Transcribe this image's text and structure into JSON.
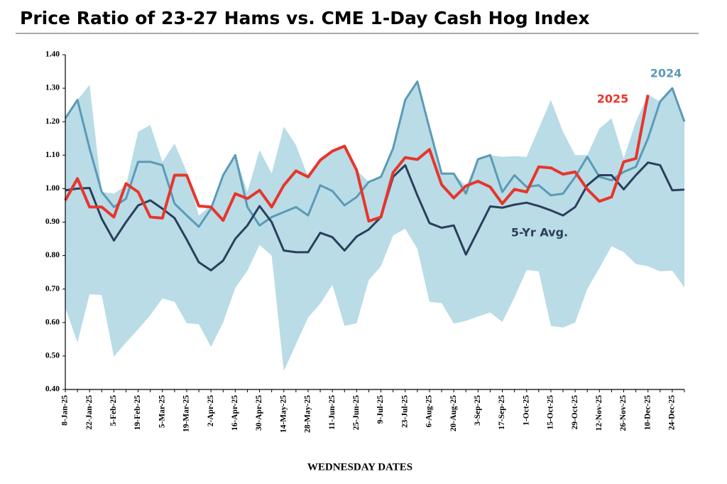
{
  "chart_data": {
    "type": "line",
    "title": "Price Ratio of 23-27 Hams vs. CME 1-Day Cash Hog Index",
    "x_label": "WEDNESDAY DATES",
    "categories": [
      "8-Jan-25",
      null,
      "22-Jan-25",
      null,
      "5-Feb-25",
      null,
      "19-Feb-25",
      null,
      "5-Mar-25",
      null,
      "19-Mar-25",
      null,
      "2-Apr-25",
      null,
      "16-Apr-25",
      null,
      "30-Apr-25",
      null,
      "14-May-25",
      null,
      "28-May-25",
      null,
      "11-Jun-25",
      null,
      "25-Jun-25",
      null,
      "9-Jul-25",
      null,
      "23-Jul-25",
      null,
      "6-Aug-25",
      null,
      "20-Aug-25",
      null,
      "3-Sep-25",
      null,
      "17-Sep-25",
      null,
      "1-Oct-25",
      null,
      "15-Oct-25",
      null,
      "29-Oct-25",
      null,
      "12-Nov-25",
      null,
      "26-Nov-25",
      null,
      "10-Dec-25",
      null,
      "24-Dec-25",
      null
    ],
    "ylim": [
      0.4,
      1.4
    ],
    "yticks": [
      {
        "value": 0.4,
        "label": "0.40"
      },
      {
        "value": 0.5,
        "label": "0.50"
      },
      {
        "value": 0.6,
        "label": "0.60"
      },
      {
        "value": 0.7,
        "label": "0.70"
      },
      {
        "value": 0.8,
        "label": "0.80"
      },
      {
        "value": 0.9,
        "label": "0.90"
      },
      {
        "value": 1.0,
        "label": "1.00"
      },
      {
        "value": 1.1,
        "label": "1.10"
      },
      {
        "value": 1.2,
        "label": "1.20"
      },
      {
        "value": 1.3,
        "label": "1.30"
      },
      {
        "value": 1.4,
        "label": "1.40"
      }
    ],
    "grid": false,
    "band": {
      "color": "#b9dce7",
      "high": [
        1.21,
        1.265,
        1.31,
        0.99,
        0.985,
        1.01,
        1.17,
        1.19,
        1.08,
        1.135,
        1.05,
        0.92,
        0.95,
        1.04,
        1.1,
        0.99,
        1.115,
        1.045,
        1.185,
        1.13,
        1.035,
        1.085,
        1.112,
        1.127,
        1.055,
        1.02,
        1.04,
        1.12,
        1.265,
        1.32,
        1.18,
        1.045,
        1.045,
        1.008,
        1.088,
        1.1,
        1.095,
        1.097,
        1.095,
        1.18,
        1.265,
        1.17,
        1.1,
        1.1,
        1.18,
        1.21,
        1.09,
        1.2,
        1.28,
        1.26,
        1.3,
        1.2
      ],
      "low": [
        0.645,
        0.54,
        0.685,
        0.682,
        0.498,
        0.54,
        0.58,
        0.622,
        0.672,
        0.662,
        0.598,
        0.595,
        0.527,
        0.6,
        0.703,
        0.755,
        0.832,
        0.8,
        0.455,
        0.535,
        0.615,
        0.656,
        0.713,
        0.59,
        0.598,
        0.727,
        0.768,
        0.86,
        0.88,
        0.82,
        0.662,
        0.658,
        0.597,
        0.605,
        0.618,
        0.63,
        0.602,
        0.675,
        0.757,
        0.753,
        0.59,
        0.585,
        0.6,
        0.7,
        0.763,
        0.828,
        0.81,
        0.775,
        0.768,
        0.753,
        0.755,
        0.705
      ]
    },
    "series": [
      {
        "name": "2024",
        "color": "#5b9ab6",
        "values": [
          1.21,
          1.265,
          1.12,
          0.99,
          0.945,
          0.97,
          1.08,
          1.08,
          1.07,
          0.955,
          0.92,
          0.886,
          0.94,
          1.04,
          1.1,
          0.945,
          0.89,
          0.915,
          0.93,
          0.945,
          0.92,
          1.01,
          0.993,
          0.95,
          0.975,
          1.02,
          1.035,
          1.12,
          1.265,
          1.32,
          1.18,
          1.045,
          1.045,
          0.985,
          1.088,
          1.1,
          0.99,
          1.04,
          1.005,
          1.01,
          0.98,
          0.985,
          1.035,
          1.095,
          1.035,
          1.025,
          1.05,
          1.065,
          1.15,
          1.26,
          1.3,
          1.2
        ]
      },
      {
        "name": "5-Yr Avg.",
        "color": "#2b3f5c",
        "values": [
          0.995,
          1.0,
          1.002,
          0.91,
          0.845,
          0.9,
          0.95,
          0.965,
          0.94,
          0.912,
          0.848,
          0.78,
          0.756,
          0.785,
          0.85,
          0.89,
          0.948,
          0.9,
          0.815,
          0.81,
          0.81,
          0.868,
          0.855,
          0.815,
          0.857,
          0.878,
          0.915,
          1.035,
          1.07,
          0.98,
          0.897,
          0.883,
          0.89,
          0.803,
          0.875,
          0.947,
          0.943,
          0.952,
          0.958,
          0.948,
          0.935,
          0.92,
          0.945,
          1.01,
          1.04,
          1.04,
          0.998,
          1.04,
          1.078,
          1.07,
          0.995,
          0.997
        ]
      },
      {
        "name": "2025",
        "color": "#e8352b",
        "values": [
          0.965,
          1.03,
          0.945,
          0.945,
          0.915,
          1.015,
          0.99,
          0.915,
          0.912,
          1.04,
          1.04,
          0.948,
          0.945,
          0.905,
          0.985,
          0.97,
          0.995,
          0.945,
          1.01,
          1.053,
          1.035,
          1.085,
          1.112,
          1.127,
          1.055,
          0.903,
          0.915,
          1.048,
          1.093,
          1.087,
          1.117,
          1.012,
          0.972,
          1.008,
          1.022,
          1.005,
          0.955,
          0.998,
          0.99,
          1.065,
          1.062,
          1.043,
          1.05,
          0.998,
          0.962,
          0.975,
          1.08,
          1.09,
          1.28,
          null,
          null,
          null
        ]
      }
    ]
  }
}
